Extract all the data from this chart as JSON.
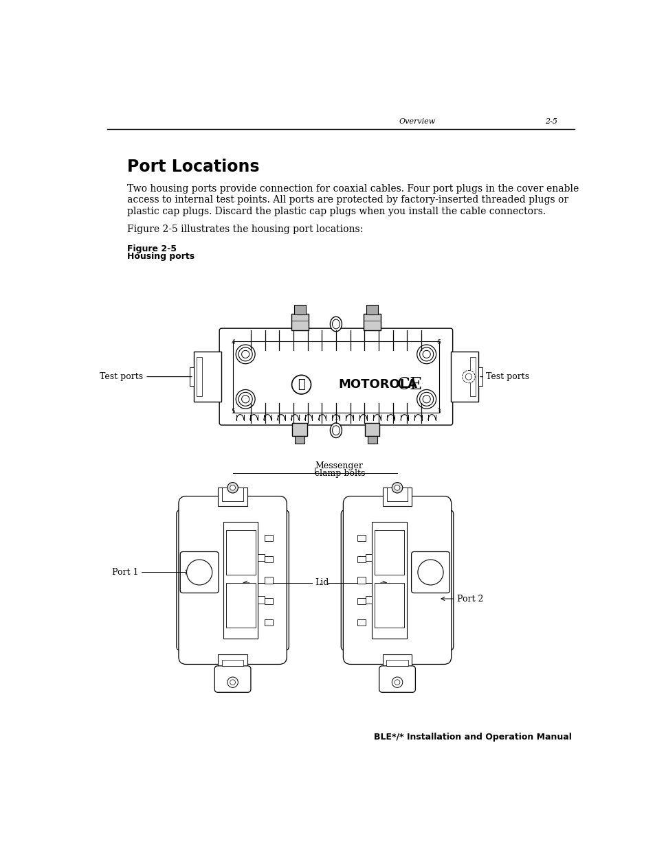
{
  "bg_color": "#ffffff",
  "header_text_overview": "Overview",
  "header_text_page": "2-5",
  "footer_text": "BLE*/* Installation and Operation Manual",
  "title": "Port Locations",
  "body_text": "Two housing ports provide connection for coaxial cables. Four port plugs in the cover enable\naccess to internal test points. All ports are protected by factory-inserted threaded plugs or\nplastic cap plugs. Discard the plastic cap plugs when you install the cable connectors.",
  "figure_ref": "Figure 2-5 illustrates the housing port locations:",
  "figure_label_bold": "Figure 2-5",
  "figure_label_sub": "Housing ports",
  "label_test_ports_left": "Test ports",
  "label_test_ports_right": "Test ports",
  "label_messenger_clamp": "Messenger\nclamp bolts",
  "label_port1": "Port 1",
  "label_port2": "Port 2",
  "label_lid": "Lid"
}
